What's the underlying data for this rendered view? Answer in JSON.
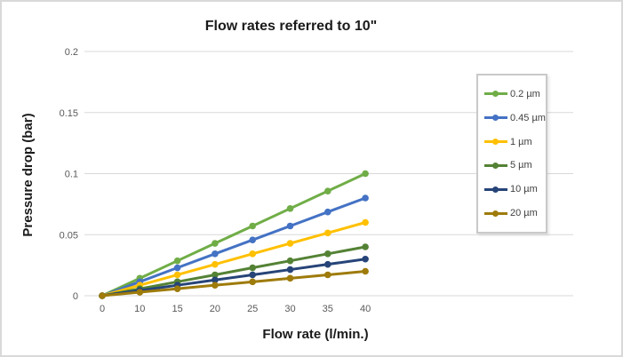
{
  "frame": {
    "background": "#ffffff",
    "border_color": "#d9d9d9"
  },
  "chart_data": {
    "type": "line",
    "title": "Flow rates referred to 10\"",
    "xlabel": "Flow rate (l/min.)",
    "ylabel": "Pressure drop (bar)",
    "categories": [
      "0",
      "10",
      "15",
      "20",
      "25",
      "30",
      "35",
      "40"
    ],
    "y_ticks": [
      "0",
      "0.05",
      "0.1",
      "0.15",
      "0.2"
    ],
    "ylim": [
      0,
      0.2
    ],
    "grid": true,
    "gridline_color": "#d9d9d9",
    "axis_line_color": "#d9d9d9",
    "tick_label_color": "#595959",
    "legend_position": "right-inside",
    "legend_border_color": "#c9c9c9",
    "marker": "circle",
    "series": [
      {
        "name": "0.2 µm",
        "color": "#70AD47",
        "values": [
          0,
          0.0143,
          0.0286,
          0.0429,
          0.0571,
          0.0714,
          0.0857,
          0.1
        ]
      },
      {
        "name": "0.45 µm",
        "color": "#4472C4",
        "values": [
          0,
          0.0114,
          0.0229,
          0.0343,
          0.0457,
          0.0571,
          0.0686,
          0.08
        ]
      },
      {
        "name": "1 µm",
        "color": "#FFC000",
        "values": [
          0,
          0.0086,
          0.0171,
          0.0257,
          0.0343,
          0.0429,
          0.0514,
          0.06
        ]
      },
      {
        "name": "5 µm",
        "color": "#548235",
        "values": [
          0,
          0.0057,
          0.0114,
          0.0171,
          0.0229,
          0.0286,
          0.0343,
          0.04
        ]
      },
      {
        "name": "10 µm",
        "color": "#264478",
        "values": [
          0,
          0.0043,
          0.0086,
          0.0129,
          0.0171,
          0.0214,
          0.0257,
          0.03
        ]
      },
      {
        "name": "20 µm",
        "color": "#9E7B0B",
        "values": [
          0,
          0.0029,
          0.0057,
          0.0086,
          0.0114,
          0.0143,
          0.0171,
          0.02
        ]
      }
    ]
  }
}
